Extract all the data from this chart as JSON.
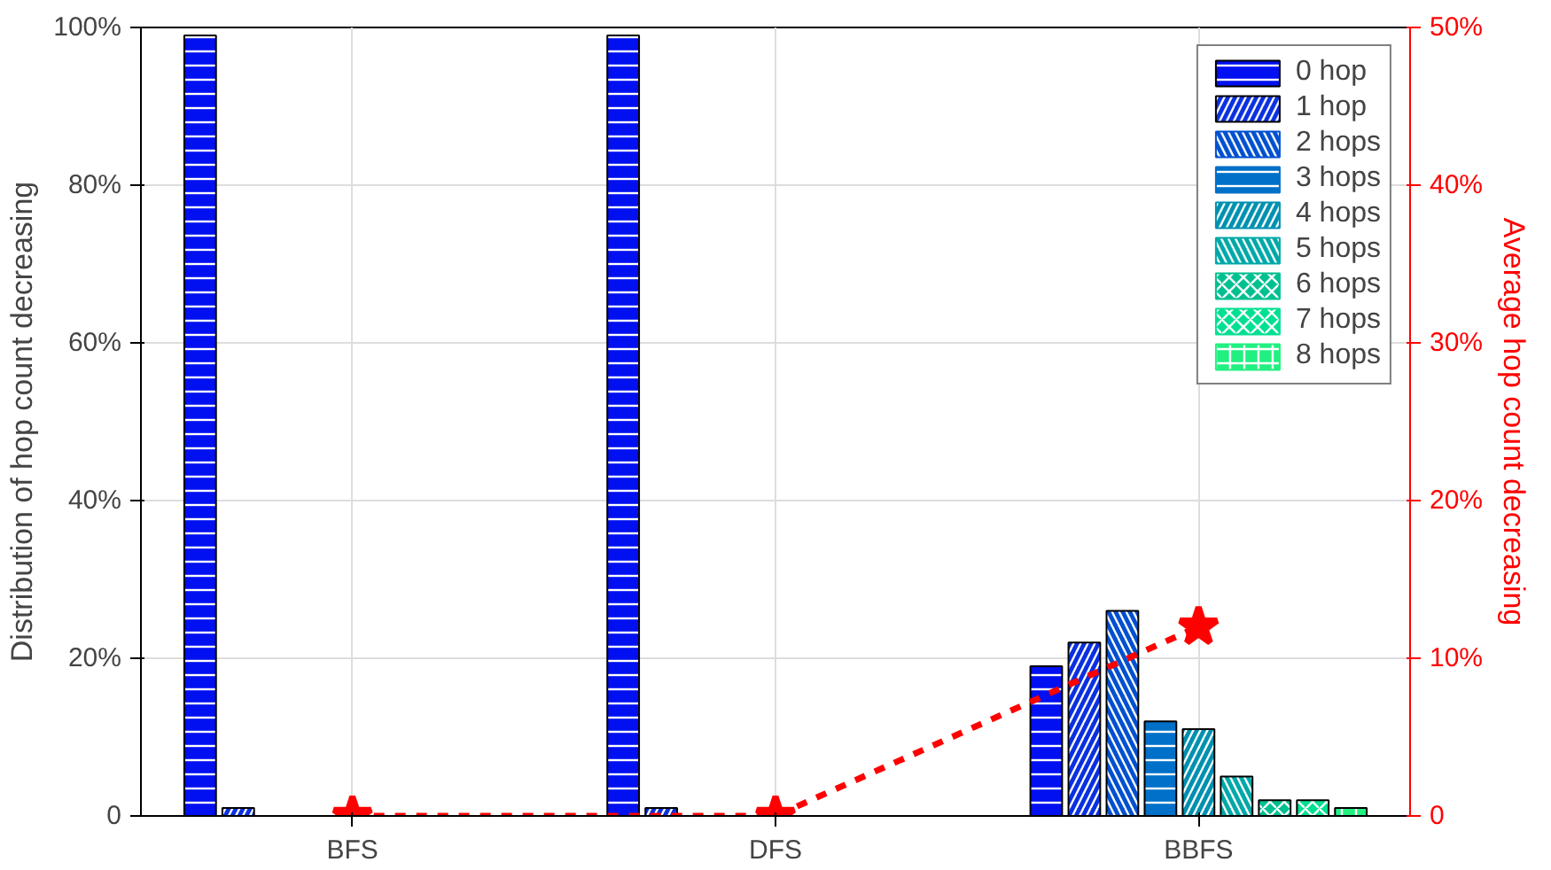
{
  "chart_data": {
    "type": "bar",
    "xlabel": null,
    "ylabel": "Distribution of hop count decreasing",
    "y2label": "Average hop count decreasing",
    "categories": [
      "BFS",
      "DFS",
      "BBFS"
    ],
    "ylim": [
      0,
      100
    ],
    "yticks": [
      {
        "value": 0,
        "label": "0"
      },
      {
        "value": 20,
        "label": "20%"
      },
      {
        "value": 40,
        "label": "40%"
      },
      {
        "value": 60,
        "label": "60%"
      },
      {
        "value": 80,
        "label": "80%"
      },
      {
        "value": 100,
        "label": "100%"
      }
    ],
    "y2lim": [
      0,
      50
    ],
    "y2ticks": [
      {
        "value": 0,
        "label": "0"
      },
      {
        "value": 10,
        "label": "10%"
      },
      {
        "value": 20,
        "label": "20%"
      },
      {
        "value": 30,
        "label": "30%"
      },
      {
        "value": 40,
        "label": "40%"
      },
      {
        "value": 50,
        "label": "50%"
      }
    ],
    "grid": true,
    "legend": "top right",
    "series": [
      {
        "name": "0 hop",
        "color": "#0010f0",
        "values": [
          99,
          99,
          19
        ]
      },
      {
        "name": "1 hop",
        "color": "#0a30e0",
        "values": [
          1,
          1,
          22
        ]
      },
      {
        "name": "2 hops",
        "color": "#0050d0",
        "values": [
          0,
          0,
          26
        ]
      },
      {
        "name": "3 hops",
        "color": "#0070c8",
        "values": [
          0,
          0,
          12
        ]
      },
      {
        "name": "4 hops",
        "color": "#0090b0",
        "values": [
          0,
          0,
          11
        ]
      },
      {
        "name": "5 hops",
        "color": "#00a8a8",
        "values": [
          0,
          0,
          5
        ]
      },
      {
        "name": "6 hops",
        "color": "#00c090",
        "values": [
          0,
          0,
          2
        ]
      },
      {
        "name": "7 hops",
        "color": "#00e090",
        "values": [
          0,
          0,
          2
        ]
      },
      {
        "name": "8 hops",
        "color": "#20f080",
        "values": [
          0,
          0,
          1
        ]
      },
      {
        "type": "line",
        "axis": "y2",
        "color": "#ff0000",
        "marker": "star",
        "line_style": "dashed",
        "values": [
          0,
          0,
          12
        ]
      }
    ]
  }
}
